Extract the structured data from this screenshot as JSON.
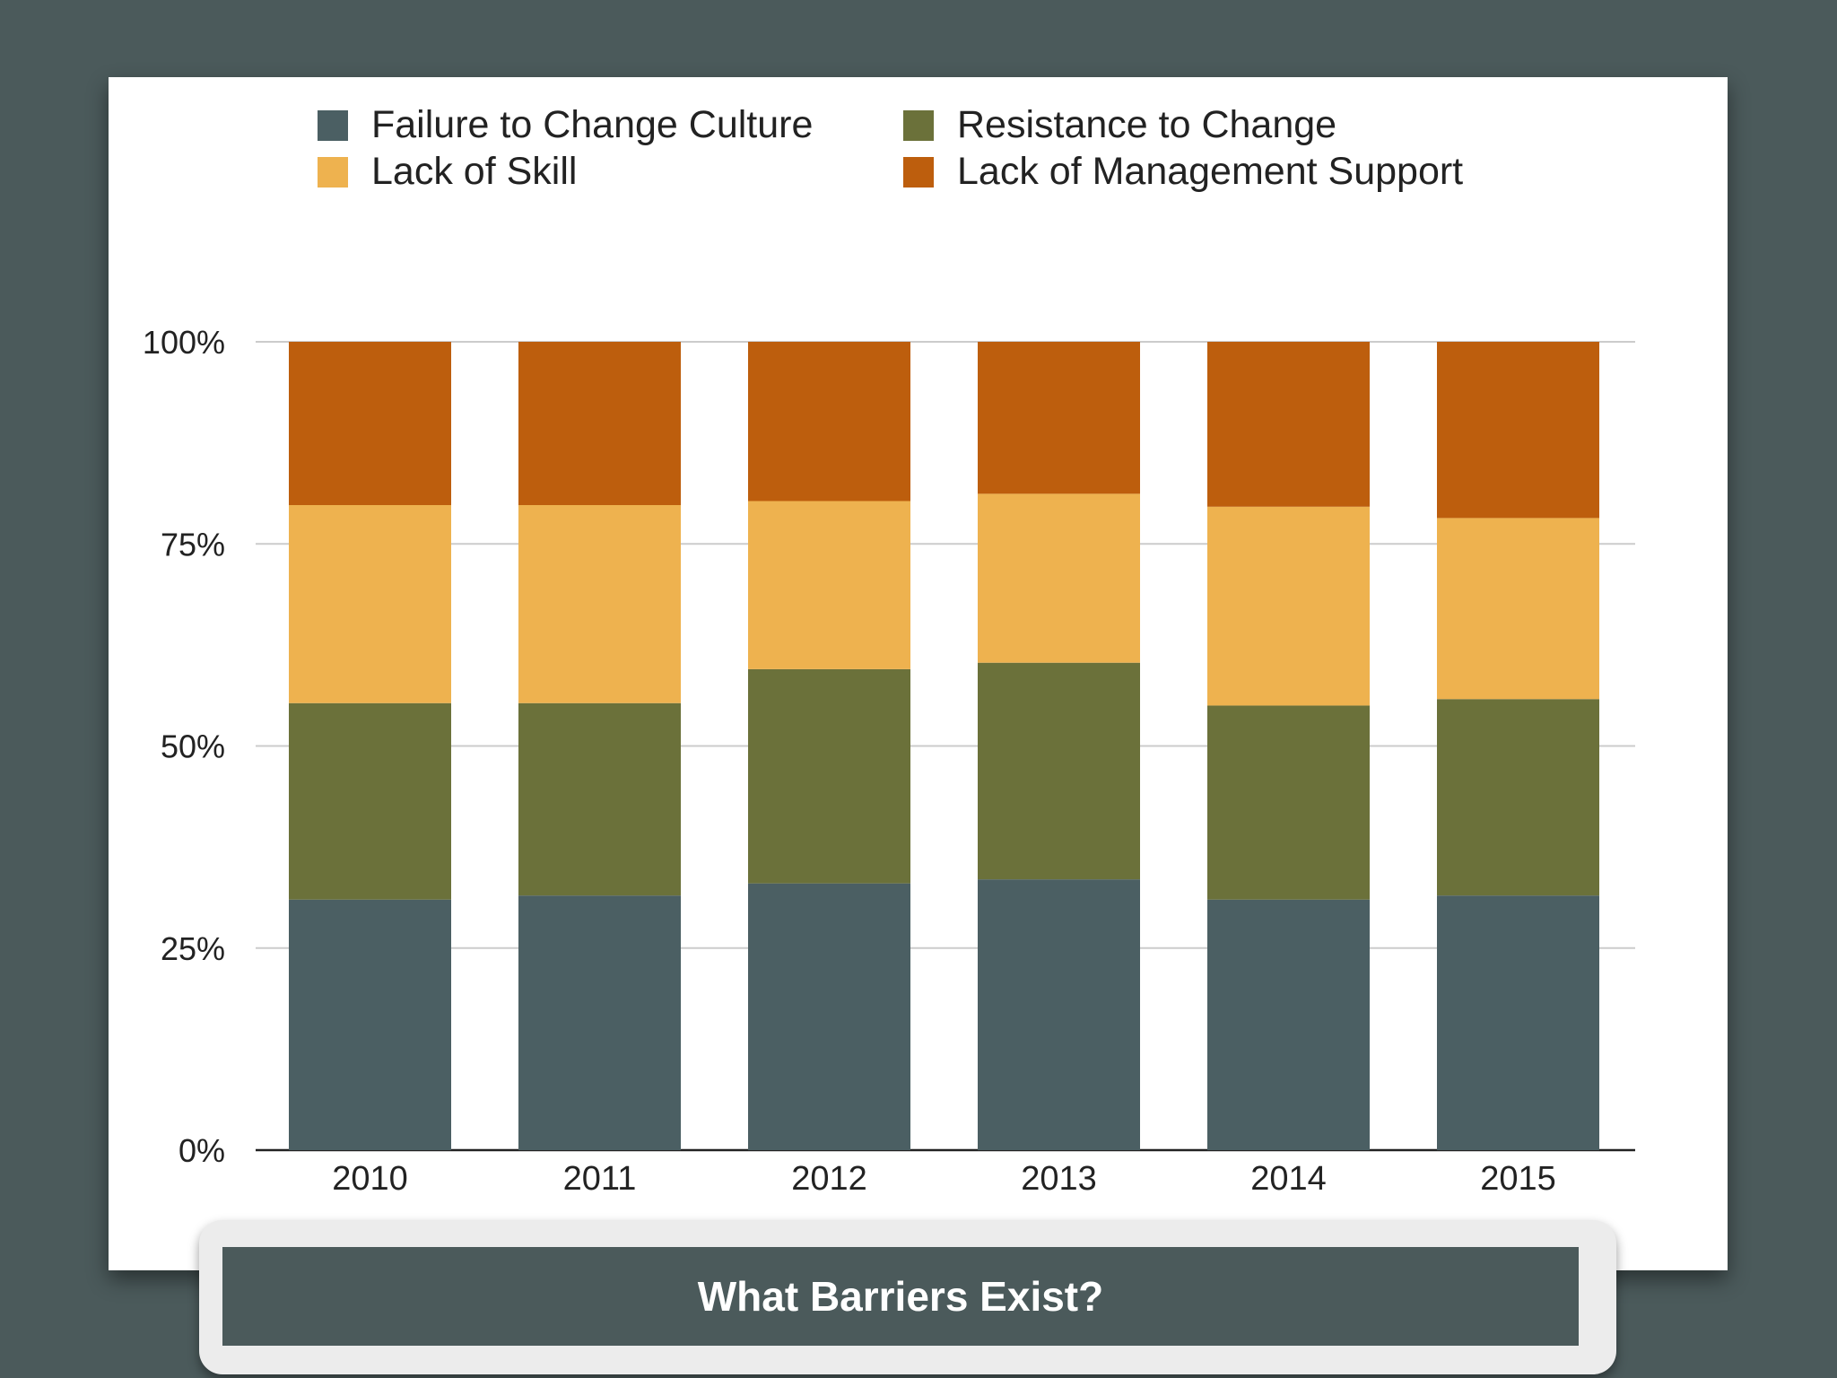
{
  "banner": {
    "title": "What Barriers Exist?"
  },
  "colors": {
    "page_bg": "#4b5a5b",
    "grid": "#cccccc",
    "axis": "#222222",
    "text": "#222222"
  },
  "chart_data": {
    "type": "bar",
    "stacked": true,
    "normalized_percent": true,
    "title": "",
    "xlabel": "",
    "ylabel": "",
    "ylim": [
      0,
      100
    ],
    "yticks": [
      "0%",
      "25%",
      "50%",
      "75%",
      "100%"
    ],
    "grid": true,
    "legend_position": "top",
    "categories": [
      "2010",
      "2011",
      "2012",
      "2013",
      "2014",
      "2015"
    ],
    "series": [
      {
        "name": "Failure to Change Culture",
        "color": "#4b5f63",
        "values": [
          31,
          31.5,
          33,
          33.5,
          31,
          31.5
        ]
      },
      {
        "name": "Resistance to Change",
        "color": "#6b713a",
        "values": [
          24.3,
          23.8,
          26.5,
          26.8,
          24,
          24.3
        ]
      },
      {
        "name": "Lack of Skill",
        "color": "#eeb24f",
        "values": [
          24.5,
          24.5,
          20.8,
          20.9,
          24.6,
          22.4
        ]
      },
      {
        "name": "Lack of Management Support",
        "color": "#bd5e0d",
        "values": [
          20.2,
          20.2,
          19.7,
          18.8,
          20.4,
          21.8
        ]
      }
    ]
  }
}
